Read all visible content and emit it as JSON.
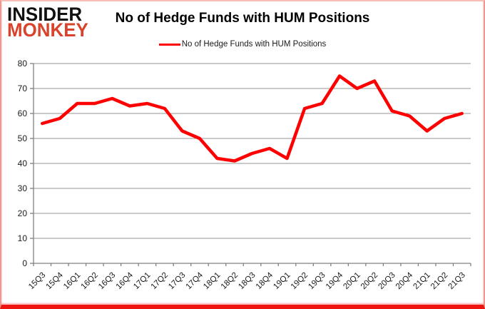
{
  "logo": {
    "line1": "INSIDER",
    "line2": "MONKEY"
  },
  "header": {
    "title": "No of Hedge Funds with HUM Positions"
  },
  "legend": {
    "label": "No of Hedge Funds with HUM Positions"
  },
  "colors": {
    "series_red": "#ff0000",
    "logo_red": "#d8432c",
    "gridline": "#969696",
    "axis": "#808080",
    "tick_label": "#1a1a1a",
    "border_red": "#ee1511"
  },
  "chart_data": {
    "type": "line",
    "title": "No of Hedge Funds with HUM Positions",
    "xlabel": "",
    "ylabel": "",
    "ylim": [
      0,
      80
    ],
    "ytick_interval": 10,
    "grid": true,
    "legend_position": "top-center",
    "categories": [
      "15Q3",
      "15Q4",
      "16Q1",
      "16Q2",
      "16Q3",
      "16Q4",
      "17Q1",
      "17Q2",
      "17Q3",
      "17Q4",
      "18Q1",
      "18Q2",
      "18Q3",
      "18Q4",
      "19Q1",
      "19Q2",
      "19Q3",
      "19Q4",
      "20Q1",
      "20Q2",
      "20Q3",
      "20Q4",
      "21Q1",
      "21Q2",
      "21Q3"
    ],
    "series": [
      {
        "name": "No of Hedge Funds with HUM Positions",
        "color": "#ff0000",
        "values": [
          56,
          58,
          64,
          64,
          66,
          63,
          64,
          62,
          53,
          50,
          42,
          41,
          44,
          46,
          42,
          62,
          64,
          75,
          70,
          73,
          61,
          59,
          53,
          58,
          60
        ]
      }
    ]
  }
}
